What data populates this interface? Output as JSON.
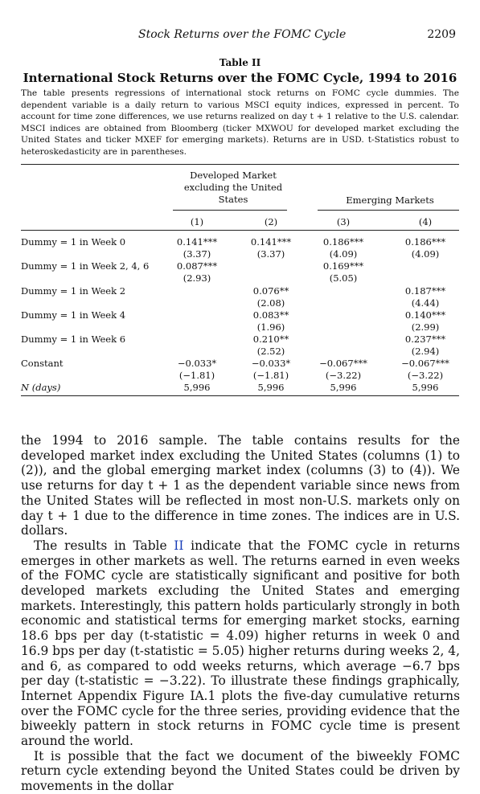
{
  "running_head": {
    "title": "Stock Returns over the FOMC Cycle",
    "page_number": "2209"
  },
  "table": {
    "label": "Table II",
    "title": "International Stock Returns over the FOMC Cycle, 1994 to 2016",
    "caption": "The table presents regressions of international stock returns on FOMC cycle dummies. The dependent variable is a daily return to various MSCI equity indices, expressed in percent. To account for time zone differences, we use returns realized on day t + 1 relative to the U.S. calendar. MSCI indices are obtained from Bloomberg (ticker MXWOU for developed market excluding the United States and ticker MXEF for emerging markets). Returns are in USD. t-Statistics robust to heteroskedasticity are in parentheses.",
    "group1": [
      "Developed Market",
      "excluding the United",
      "States"
    ],
    "group2": "Emerging Markets",
    "columns": [
      "(1)",
      "(2)",
      "(3)",
      "(4)"
    ],
    "rows": [
      {
        "label": "Dummy = 1 in Week 0",
        "c1": [
          "0.141***",
          "(3.37)"
        ],
        "c2": [
          "0.141***",
          "(3.37)"
        ],
        "c3": [
          "0.186***",
          "(4.09)"
        ],
        "c4": [
          "0.186***",
          "(4.09)"
        ]
      },
      {
        "label": "Dummy = 1 in Week 2, 4, 6",
        "c1": [
          "0.087***",
          "(2.93)"
        ],
        "c2": [
          "",
          ""
        ],
        "c3": [
          "0.169***",
          "(5.05)"
        ],
        "c4": [
          "",
          ""
        ]
      },
      {
        "label": "Dummy = 1 in Week 2",
        "c1": [
          "",
          ""
        ],
        "c2": [
          "0.076**",
          "(2.08)"
        ],
        "c3": [
          "",
          ""
        ],
        "c4": [
          "0.187***",
          "(4.44)"
        ]
      },
      {
        "label": "Dummy = 1 in Week 4",
        "c1": [
          "",
          ""
        ],
        "c2": [
          "0.083**",
          "(1.96)"
        ],
        "c3": [
          "",
          ""
        ],
        "c4": [
          "0.140***",
          "(2.99)"
        ]
      },
      {
        "label": "Dummy = 1 in Week 6",
        "c1": [
          "",
          ""
        ],
        "c2": [
          "0.210**",
          "(2.52)"
        ],
        "c3": [
          "",
          ""
        ],
        "c4": [
          "0.237***",
          "(2.94)"
        ]
      },
      {
        "label": "Constant",
        "c1": [
          "−0.033*",
          "(−1.81)"
        ],
        "c2": [
          "−0.033*",
          "(−1.81)"
        ],
        "c3": [
          "−0.067***",
          "(−3.22)"
        ],
        "c4": [
          "−0.067***",
          "(−3.22)"
        ]
      },
      {
        "label": "N (days)",
        "c1": [
          "5,996",
          ""
        ],
        "c2": [
          "5,996",
          ""
        ],
        "c3": [
          "5,996",
          ""
        ],
        "c4": [
          "5,996",
          ""
        ]
      }
    ]
  },
  "body": {
    "p1": "the 1994 to 2016 sample. The table contains results for the developed market index excluding the United States (columns (1) to (2)), and the global emerging market index (columns (3) to (4)). We use returns for day t + 1 as the dependent variable since news from the United States will be reflected in most non-U.S. markets only on day t + 1 due to the difference in time zones. The indices are in U.S. dollars.",
    "p2_pre": "The results in Table ",
    "p2_link": "II",
    "p2_post": " indicate that the FOMC cycle in returns emerges in other markets as well. The returns earned in even weeks of the FOMC cycle are statistically significant and positive for both developed markets excluding the United States and emerging markets. Interestingly, this pattern holds particularly strongly in both economic and statistical terms for emerging market stocks, earning 18.6 bps per day (t-statistic = 4.09) higher returns in week 0 and 16.9 bps per day (t-statistic = 5.05) higher returns during weeks 2, 4, and 6, as compared to odd weeks returns, which average −6.7 bps per day (t-statistic = −3.22). To illustrate these findings graphically, Internet Appendix Figure IA.1 plots the five-day cumulative returns over the FOMC cycle for the three series, providing evidence that the biweekly pattern in stock returns in FOMC cycle time is present around the world.",
    "p3": "It is possible that the fact we document of the biweekly FOMC return cycle extending beyond the United States could be driven by movements in the dollar"
  }
}
